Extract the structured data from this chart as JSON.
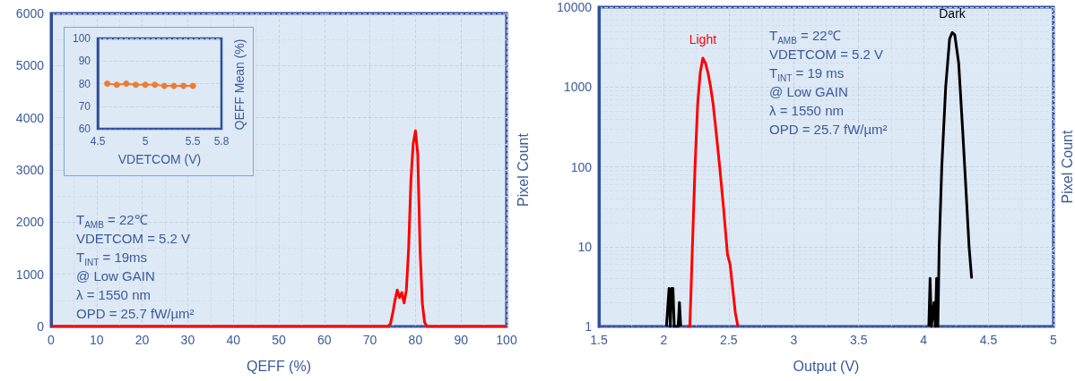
{
  "chart_data": [
    {
      "type": "line",
      "xlabel": "QEFF (%)",
      "ylabel": "Pixel Count",
      "color": "#ff0000",
      "marker": "none",
      "x": [
        0,
        74,
        74.5,
        75,
        75.5,
        76,
        76.5,
        77,
        77.5,
        78,
        78.5,
        79,
        79.5,
        80,
        80.5,
        81,
        81.5,
        82,
        82.5,
        100
      ],
      "values": [
        0,
        0,
        50,
        250,
        500,
        700,
        550,
        650,
        450,
        700,
        1500,
        2800,
        3500,
        3750,
        3300,
        1500,
        450,
        80,
        0,
        0
      ],
      "xlim": [
        0,
        100
      ],
      "xticks": [
        0,
        10,
        20,
        30,
        40,
        50,
        60,
        70,
        80,
        90,
        100
      ],
      "ylim": [
        0,
        6000
      ],
      "yticks": [
        0,
        1000,
        2000,
        3000,
        4000,
        5000,
        6000
      ],
      "grid": true,
      "annotations": [
        "T$_{AMB}$ = 22℃",
        "VDETCOM = 5.2 V",
        "T$_{INT}$ = 19ms",
        "@ Low GAIN",
        "λ = 1550 nm",
        "OPD = 25.7 fW/µm²"
      ]
    },
    {
      "type": "line",
      "xlabel": "VDETCOM (V)",
      "ylabel": "QEFF Mean (%)",
      "color": "#ed7d31",
      "marker": "circle",
      "x": [
        4.6,
        4.7,
        4.8,
        4.9,
        5.0,
        5.1,
        5.2,
        5.3,
        5.4,
        5.5
      ],
      "values": [
        80,
        79.5,
        80,
        79.5,
        79.5,
        79.5,
        79,
        79,
        79,
        79
      ],
      "xlim": [
        4.5,
        5.8
      ],
      "xticks": [
        4.5,
        5,
        5.5,
        5.8
      ],
      "ylim": [
        60,
        100
      ],
      "yticks": [
        60,
        70,
        80,
        90,
        100
      ],
      "grid": "y"
    },
    {
      "type": "line",
      "xlabel": "Output (V)",
      "ylabel": "Pixel Count",
      "log": "y",
      "marker": "none",
      "series": [
        {
          "name": "Light",
          "color": "#ff0000",
          "x": [
            2.18,
            2.2,
            2.21,
            2.22,
            2.24,
            2.26,
            2.28,
            2.3,
            2.32,
            2.34,
            2.36,
            2.38,
            2.4,
            2.43,
            2.46,
            2.49,
            2.51,
            2.53,
            2.55,
            2.57
          ],
          "values": [
            1,
            1,
            3,
            10,
            100,
            600,
            1500,
            2300,
            2000,
            1500,
            1000,
            600,
            300,
            100,
            30,
            8,
            6,
            3,
            1.5,
            1
          ]
        },
        {
          "name": "Dark",
          "color": "#000000",
          "x": [
            2.02,
            2.04,
            2.05,
            2.06,
            2.07,
            2.08,
            2.11,
            2.12,
            2.13,
            3,
            4.04,
            4.05,
            4.06,
            4.08,
            4.09,
            4.1,
            4.11,
            4.12,
            4.14,
            4.17,
            4.2,
            4.22,
            4.24,
            4.27,
            4.3,
            4.33,
            4.35,
            4.37
          ],
          "values": [
            1,
            3,
            1,
            3,
            3,
            1,
            1,
            2,
            1,
            null,
            1,
            4,
            1,
            2,
            1,
            4,
            1,
            10,
            100,
            1000,
            4000,
            4800,
            4500,
            2000,
            300,
            40,
            10,
            4
          ]
        }
      ],
      "xlim": [
        1.5,
        5
      ],
      "xticks": [
        1.5,
        2,
        2.5,
        3,
        3.5,
        4,
        4.5,
        5
      ],
      "ylim": [
        1,
        10000
      ],
      "yticks": [
        1,
        10,
        100,
        1000,
        10000
      ],
      "grid": true,
      "annotations": [
        "T$_{AMB}$ = 22℃",
        "VDETCOM = 5.2 V",
        "T$_{INT}$ = 19 ms",
        "@ Low GAIN",
        "λ = 1550 nm",
        "OPD = 25.7 fW/µm²"
      ]
    }
  ]
}
